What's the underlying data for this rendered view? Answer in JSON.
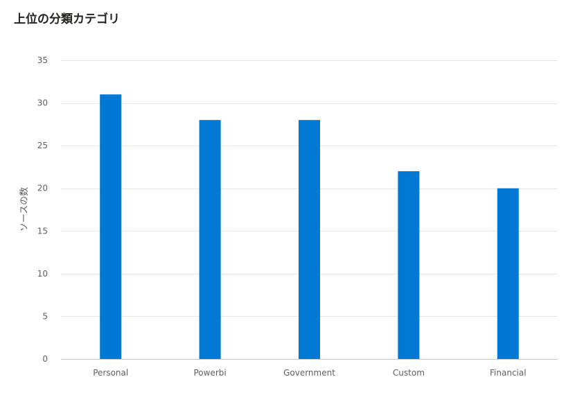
{
  "chart_data": {
    "type": "bar",
    "title": "上位の分類カテゴリ",
    "xlabel": "",
    "ylabel": "ソースの数",
    "categories": [
      "Personal",
      "Powerbi",
      "Government",
      "Custom",
      "Financial"
    ],
    "values": [
      31,
      28,
      28,
      22,
      20
    ],
    "ylim": [
      0,
      35
    ],
    "yticks": [
      0,
      5,
      10,
      15,
      20,
      25,
      30,
      35
    ],
    "grid": true,
    "legend": "none",
    "bar_color": "#0078d4"
  }
}
